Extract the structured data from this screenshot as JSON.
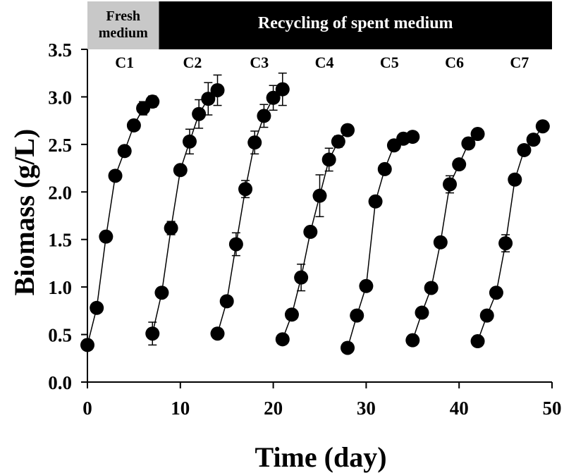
{
  "chart_data": {
    "type": "scatter",
    "xlabel": "Time (day)",
    "ylabel": "Biomass (g/L)",
    "xlim": [
      0,
      50
    ],
    "ylim": [
      0,
      3.5
    ],
    "xticks": [
      0,
      10,
      20,
      30,
      40,
      50
    ],
    "yticks": [
      0.0,
      0.5,
      1.0,
      1.5,
      2.0,
      2.5,
      3.0,
      3.5
    ],
    "ytick_labels": [
      "0.0",
      "0.5",
      "1.0",
      "1.5",
      "2.0",
      "2.5",
      "3.0",
      "3.5"
    ],
    "grid": false,
    "phase_banner": [
      {
        "label": "Fresh medium",
        "x_start": 0,
        "x_end": 7.7,
        "fill": "#c8c8c8",
        "text_color": "#000000"
      },
      {
        "label": "Recycling of spent medium",
        "x_start": 7.7,
        "x_end": 50,
        "fill": "#000000",
        "text_color": "#ffffff"
      }
    ],
    "cycle_labels": [
      {
        "label": "C1",
        "x": 4
      },
      {
        "label": "C2",
        "x": 11.3
      },
      {
        "label": "C3",
        "x": 18.5
      },
      {
        "label": "C4",
        "x": 25.5
      },
      {
        "label": "C5",
        "x": 32.5
      },
      {
        "label": "C6",
        "x": 39.5
      },
      {
        "label": "C7",
        "x": 46.5
      }
    ],
    "series": [
      {
        "name": "C1",
        "x": [
          0,
          1,
          2,
          3,
          4,
          5,
          6,
          7
        ],
        "y": [
          0.39,
          0.78,
          1.53,
          2.17,
          2.43,
          2.7,
          2.88,
          2.95
        ],
        "err": [
          0.02,
          0.03,
          0.04,
          0.03,
          0.05,
          0.04,
          0.07,
          0.06
        ]
      },
      {
        "name": "C2",
        "x": [
          7,
          8,
          9,
          10,
          11,
          12,
          13,
          14
        ],
        "y": [
          0.51,
          0.94,
          1.62,
          2.23,
          2.53,
          2.82,
          2.98,
          3.07
        ],
        "err": [
          0.12,
          0.04,
          0.07,
          0.05,
          0.13,
          0.15,
          0.17,
          0.16
        ]
      },
      {
        "name": "C3",
        "x": [
          14,
          15,
          16,
          17,
          18,
          19,
          20,
          21
        ],
        "y": [
          0.51,
          0.85,
          1.45,
          2.03,
          2.52,
          2.8,
          2.99,
          3.08
        ],
        "err": [
          0.02,
          0.03,
          0.12,
          0.09,
          0.12,
          0.12,
          0.13,
          0.17
        ]
      },
      {
        "name": "C4",
        "x": [
          21,
          22,
          23,
          24,
          25,
          26,
          27,
          28
        ],
        "y": [
          0.45,
          0.71,
          1.1,
          1.58,
          1.96,
          2.34,
          2.53,
          2.65
        ],
        "err": [
          0.02,
          0.04,
          0.14,
          0.05,
          0.22,
          0.12,
          0.06,
          0.03
        ]
      },
      {
        "name": "C5",
        "x": [
          28,
          29,
          30,
          31,
          32,
          33,
          34,
          35
        ],
        "y": [
          0.36,
          0.7,
          1.01,
          1.9,
          2.24,
          2.49,
          2.56,
          2.58
        ],
        "err": [
          0.02,
          0.03,
          0.04,
          0.05,
          0.04,
          0.03,
          0.03,
          0.03
        ]
      },
      {
        "name": "C6",
        "x": [
          35,
          36,
          37,
          38,
          39,
          40,
          41,
          42
        ],
        "y": [
          0.44,
          0.73,
          0.99,
          1.47,
          2.08,
          2.29,
          2.51,
          2.61
        ],
        "err": [
          0.02,
          0.03,
          0.04,
          0.05,
          0.09,
          0.04,
          0.04,
          0.03
        ]
      },
      {
        "name": "C7",
        "x": [
          42,
          43,
          44,
          45,
          46,
          47,
          48,
          49
        ],
        "y": [
          0.43,
          0.7,
          0.94,
          1.46,
          2.13,
          2.44,
          2.55,
          2.69
        ],
        "err": [
          0.02,
          0.03,
          0.04,
          0.09,
          0.05,
          0.05,
          0.04,
          0.03
        ]
      }
    ],
    "colors": {
      "marker": "#000000",
      "line": "#000000",
      "axis": "#000000"
    }
  }
}
